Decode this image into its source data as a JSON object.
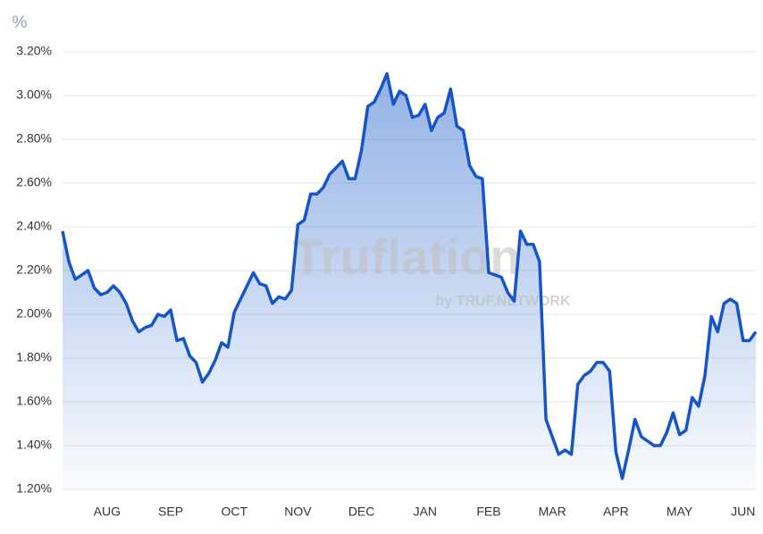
{
  "chart_data": {
    "type": "area",
    "y_label": "%",
    "watermark": "Truflation",
    "watermark_sub": "by TRUF.NETWORK",
    "categories": [
      null,
      null,
      null,
      null,
      null,
      null,
      null,
      "AUG",
      null,
      null,
      null,
      null,
      null,
      null,
      null,
      null,
      null,
      "SEP",
      null,
      null,
      null,
      null,
      null,
      null,
      null,
      null,
      null,
      "OCT",
      null,
      null,
      null,
      null,
      null,
      null,
      null,
      null,
      null,
      "NOV",
      null,
      null,
      null,
      null,
      null,
      null,
      null,
      null,
      null,
      "DEC",
      null,
      null,
      null,
      null,
      null,
      null,
      null,
      null,
      null,
      "JAN",
      null,
      null,
      null,
      null,
      null,
      null,
      null,
      null,
      null,
      "FEB",
      null,
      null,
      null,
      null,
      null,
      null,
      null,
      null,
      null,
      "MAR",
      null,
      null,
      null,
      null,
      null,
      null,
      null,
      null,
      null,
      "APR",
      null,
      null,
      null,
      null,
      null,
      null,
      null,
      null,
      null,
      "MAY",
      null,
      null,
      null,
      null,
      null,
      null,
      null,
      null,
      null,
      "JUN",
      null,
      null
    ],
    "values": [
      2.38,
      2.24,
      2.16,
      2.18,
      2.2,
      2.12,
      2.09,
      2.1,
      2.13,
      2.1,
      2.05,
      1.97,
      1.92,
      1.94,
      1.95,
      2.0,
      1.99,
      2.02,
      1.88,
      1.89,
      1.81,
      1.78,
      1.69,
      1.73,
      1.79,
      1.87,
      1.85,
      2.01,
      2.07,
      2.13,
      2.19,
      2.14,
      2.13,
      2.05,
      2.08,
      2.07,
      2.11,
      2.41,
      2.43,
      2.55,
      2.55,
      2.58,
      2.64,
      2.67,
      2.7,
      2.62,
      2.62,
      2.75,
      2.95,
      2.97,
      3.03,
      3.1,
      2.96,
      3.02,
      3.0,
      2.9,
      2.91,
      2.96,
      2.84,
      2.9,
      2.92,
      3.03,
      2.86,
      2.84,
      2.68,
      2.63,
      2.62,
      2.19,
      2.18,
      2.17,
      2.1,
      2.06,
      2.38,
      2.32,
      2.32,
      2.24,
      1.52,
      1.44,
      1.36,
      1.38,
      1.36,
      1.68,
      1.72,
      1.74,
      1.78,
      1.78,
      1.74,
      1.37,
      1.25,
      1.38,
      1.52,
      1.44,
      1.42,
      1.4,
      1.4,
      1.46,
      1.55,
      1.45,
      1.47,
      1.62,
      1.58,
      1.72,
      1.99,
      1.92,
      2.05,
      2.07,
      2.05,
      1.88,
      1.88,
      1.92
    ],
    "color": "#1655c8",
    "ylim": [
      1.2,
      3.2
    ],
    "yticks": [
      {
        "value": 1.2,
        "label": "1.20%"
      },
      {
        "value": 1.4,
        "label": "1.40%"
      },
      {
        "value": 1.6,
        "label": "1.60%"
      },
      {
        "value": 1.8,
        "label": "1.80%"
      },
      {
        "value": 2.0,
        "label": "2.00%"
      },
      {
        "value": 2.2,
        "label": "2.20%"
      },
      {
        "value": 2.4,
        "label": "2.40%"
      },
      {
        "value": 2.6,
        "label": "2.60%"
      },
      {
        "value": 2.8,
        "label": "2.80%"
      },
      {
        "value": 3.0,
        "label": "3.00%"
      },
      {
        "value": 3.2,
        "label": "3.20%"
      }
    ],
    "grid": true
  }
}
